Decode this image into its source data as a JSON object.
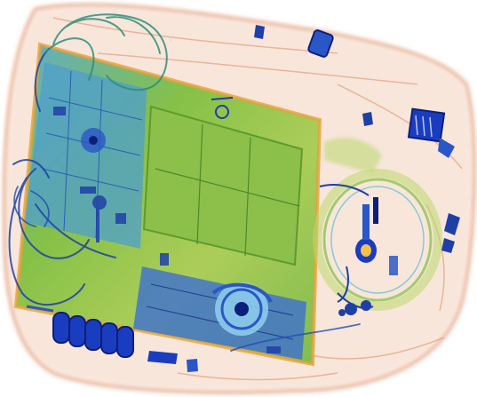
{
  "image": {
    "kind": "x-ray baggage scan",
    "palette": {
      "organic": "#d9794a",
      "organic_light": "#f1c2a4",
      "mixed": "#7fbf3f",
      "mixed_light": "#b9d86a",
      "inorganic": "#2b56c8",
      "dense": "#0c1f7a",
      "cyan": "#3fb8c8"
    },
    "objects": [
      {
        "name": "laptop",
        "material": "mixed"
      },
      {
        "name": "cables",
        "material": "inorganic"
      },
      {
        "name": "battery-bank",
        "material": "dense"
      },
      {
        "name": "cooling-fan",
        "material": "inorganic"
      },
      {
        "name": "cable-coil",
        "material": "mixed"
      },
      {
        "name": "keys",
        "material": "inorganic"
      },
      {
        "name": "small-gadgets",
        "material": "dense"
      }
    ]
  }
}
